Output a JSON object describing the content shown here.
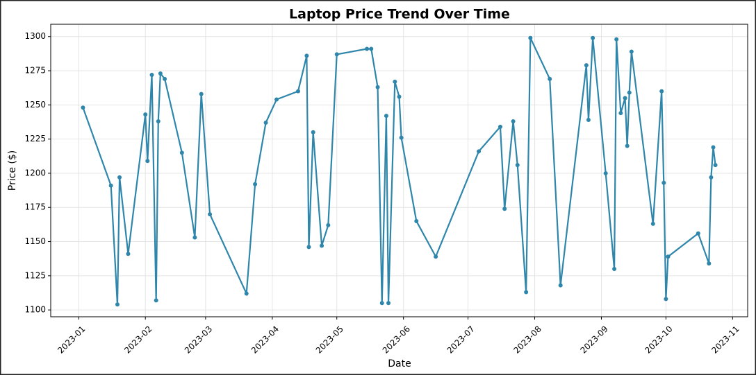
{
  "chart_data": {
    "type": "line",
    "title": "Laptop Price Trend Over Time",
    "x_label": "Date",
    "y_label": "Price ($)",
    "x": [
      2,
      15,
      18,
      19,
      23,
      31,
      32,
      34,
      36,
      37,
      38,
      40,
      48,
      54,
      57,
      61,
      78,
      82,
      87,
      92,
      102,
      106,
      107,
      109,
      113,
      116,
      120,
      134,
      136,
      139,
      141,
      143,
      144,
      147,
      149,
      150,
      157,
      166,
      186,
      196,
      198,
      202,
      204,
      208,
      210,
      219,
      224,
      236,
      237,
      239,
      245,
      249,
      250,
      252,
      254,
      255,
      256,
      257,
      267,
      271,
      272,
      273,
      274,
      288,
      293,
      294,
      295,
      296
    ],
    "series": [
      {
        "name": "Price",
        "color": "#2e86ab",
        "values": [
          1248,
          1191,
          1104,
          1197,
          1141,
          1243,
          1209,
          1272,
          1107,
          1238,
          1273,
          1269,
          1215,
          1153,
          1258,
          1170,
          1112,
          1192,
          1237,
          1254,
          1260,
          1286,
          1146,
          1230,
          1147,
          1162,
          1287,
          1291,
          1291,
          1263,
          1105,
          1242,
          1105,
          1267,
          1256,
          1226,
          1165,
          1139,
          1216,
          1234,
          1174,
          1238,
          1206,
          1113,
          1299,
          1269,
          1118,
          1279,
          1239,
          1299,
          1200,
          1130,
          1298,
          1244,
          1255,
          1220,
          1259,
          1289,
          1163,
          1260,
          1193,
          1108,
          1139,
          1156,
          1134,
          1197,
          1219,
          1206
        ]
      }
    ],
    "xlim": [
      -13,
      311
    ],
    "ylim": [
      1095,
      1309
    ],
    "xticks": [
      {
        "value": 0,
        "label": "2023-01"
      },
      {
        "value": 31,
        "label": "2023-02"
      },
      {
        "value": 59,
        "label": "2023-03"
      },
      {
        "value": 90,
        "label": "2023-04"
      },
      {
        "value": 120,
        "label": "2023-05"
      },
      {
        "value": 151,
        "label": "2023-06"
      },
      {
        "value": 181,
        "label": "2023-07"
      },
      {
        "value": 212,
        "label": "2023-08"
      },
      {
        "value": 243,
        "label": "2023-09"
      },
      {
        "value": 273,
        "label": "2023-10"
      },
      {
        "value": 304,
        "label": "2023-11"
      }
    ],
    "yticks": [
      1100,
      1125,
      1150,
      1175,
      1200,
      1225,
      1250,
      1275,
      1300
    ],
    "grid": true
  }
}
